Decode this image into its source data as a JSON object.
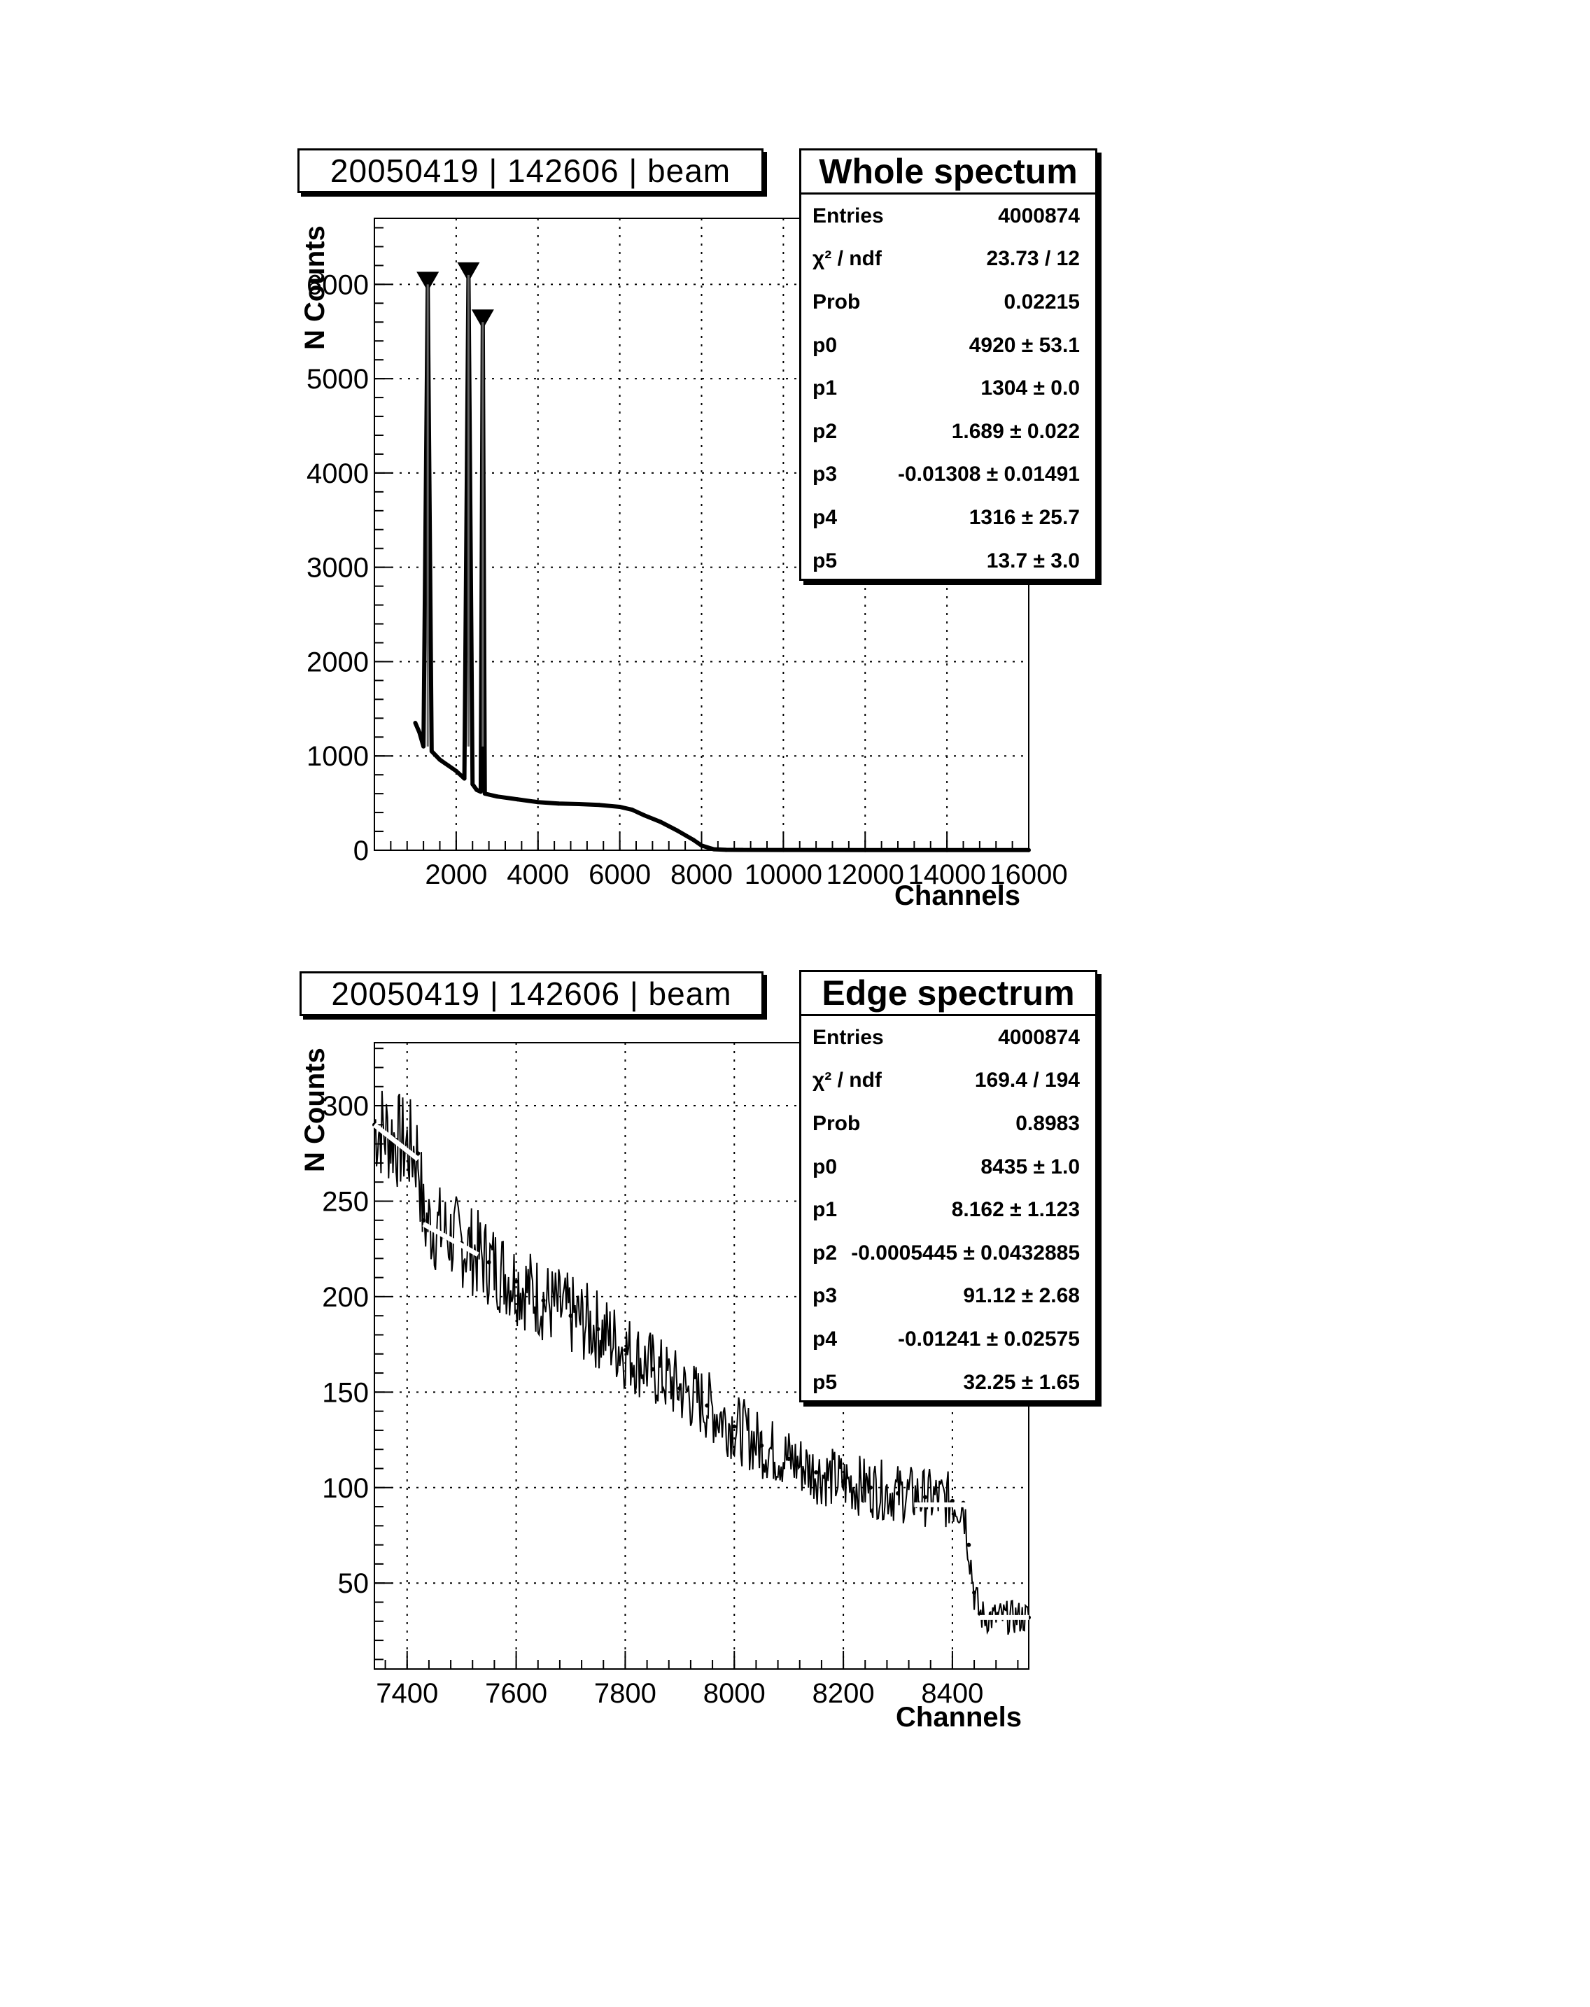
{
  "charts": [
    {
      "run_label": "20050419 | 142606 | beam",
      "stats": {
        "name": "Whole spectum",
        "rows": [
          {
            "k": "Entries",
            "v": "4000874"
          },
          {
            "k": "χ² / ndf",
            "v": "23.73 / 12"
          },
          {
            "k": "Prob",
            "v": "0.02215"
          },
          {
            "k": "p0",
            "v": "4920 ± 53.1"
          },
          {
            "k": "p1",
            "v": "1304 ± 0.0"
          },
          {
            "k": "p2",
            "v": "1.689 ± 0.022"
          },
          {
            "k": "p3",
            "v": "-0.01308 ± 0.01491"
          },
          {
            "k": "p4",
            "v": "1316 ± 25.7"
          },
          {
            "k": "p5",
            "v": "13.7 ± 3.0"
          }
        ]
      },
      "ylabel": "N Counts",
      "xlabel": "Channels"
    },
    {
      "run_label": "20050419 | 142606 | beam",
      "stats": {
        "name": "Edge spectrum",
        "rows": [
          {
            "k": "Entries",
            "v": "4000874"
          },
          {
            "k": "χ² / ndf",
            "v": "169.4 / 194"
          },
          {
            "k": "Prob",
            "v": "0.8983"
          },
          {
            "k": "p0",
            "v": "8435 ± 1.0"
          },
          {
            "k": "p1",
            "v": "8.162 ± 1.123"
          },
          {
            "k": "p2",
            "v": "-0.0005445 ± 0.0432885"
          },
          {
            "k": "p3",
            "v": "91.12 ± 2.68"
          },
          {
            "k": "p4",
            "v": "-0.01241 ± 0.02575"
          },
          {
            "k": "p5",
            "v": "32.25 ± 1.65"
          }
        ]
      },
      "ylabel": "N Counts",
      "xlabel": "Channels"
    }
  ],
  "chart_data": [
    {
      "type": "line",
      "title": "Whole spectum",
      "xlabel": "Channels",
      "ylabel": "N Counts",
      "xlim": [
        0,
        16000
      ],
      "ylim": [
        0,
        6700
      ],
      "xticks": [
        2000,
        4000,
        6000,
        8000,
        10000,
        12000,
        14000,
        16000
      ],
      "xtick_labels": [
        "2000",
        "4000",
        "6000",
        "8000",
        "10000",
        "12000",
        "14000",
        "16000"
      ],
      "yticks": [
        0,
        1000,
        2000,
        3000,
        4000,
        5000,
        6000
      ],
      "ytick_labels": [
        "0",
        "1000",
        "2000",
        "3000",
        "4000",
        "5000",
        "6000"
      ],
      "grid": true,
      "series": [
        {
          "x": [
            1000,
            1100,
            1200,
            1304,
            1400,
            1600,
            1800,
            2000,
            2200,
            2300,
            2400,
            2500,
            2600,
            2650,
            2700,
            3000,
            3500,
            4000,
            4500,
            5000,
            5500,
            6000,
            6300,
            6600,
            7000,
            7400,
            7800,
            8000,
            8300,
            8600,
            9000,
            10000,
            12000,
            14000,
            16000
          ],
          "y": [
            1350,
            1250,
            1100,
            6000,
            1050,
            960,
            900,
            840,
            760,
            6100,
            700,
            640,
            620,
            5600,
            600,
            570,
            540,
            510,
            495,
            490,
            480,
            460,
            430,
            370,
            300,
            210,
            110,
            50,
            10,
            5,
            4,
            3,
            2,
            2,
            2
          ]
        }
      ],
      "peak_markers_x": [
        1304,
        2300,
        2650
      ],
      "peak_markers_y": [
        6000,
        6100,
        5600
      ]
    },
    {
      "type": "line",
      "title": "Edge spectrum",
      "xlabel": "Channels",
      "ylabel": "N Counts",
      "xlim": [
        7340,
        8540
      ],
      "ylim": [
        5,
        333
      ],
      "xticks": [
        7400,
        7600,
        7800,
        8000,
        8200,
        8400
      ],
      "xtick_labels": [
        "7400",
        "7600",
        "7800",
        "8000",
        "8200",
        "8400"
      ],
      "yticks": [
        50,
        100,
        150,
        200,
        250,
        300
      ],
      "ytick_labels": [
        "50",
        "100",
        "150",
        "200",
        "250",
        "300"
      ],
      "grid": true,
      "series": [
        {
          "x": [
            7340,
            7380,
            7420,
            7430,
            7500,
            7550,
            7600,
            7650,
            7700,
            7750,
            7800,
            7850,
            7900,
            7950,
            8000,
            8050,
            8100,
            8150,
            8200,
            8250,
            8300,
            8350,
            8400,
            8420,
            8430,
            8440,
            8450,
            8460,
            8500,
            8540
          ],
          "y": [
            290,
            282,
            275,
            240,
            228,
            218,
            208,
            198,
            190,
            183,
            172,
            162,
            152,
            143,
            132,
            122,
            115,
            108,
            103,
            100,
            97,
            95,
            93,
            92,
            70,
            45,
            34,
            32,
            32,
            32
          ]
        }
      ],
      "fit_segments": [
        {
          "x": [
            7340,
            7420
          ],
          "y": [
            290,
            272
          ]
        },
        {
          "x": [
            7430,
            7530
          ],
          "y": [
            238,
            222
          ]
        },
        {
          "x": [
            8330,
            8430
          ],
          "y": [
            91,
            91
          ]
        },
        {
          "x": [
            8450,
            8540
          ],
          "y": [
            32,
            32
          ]
        }
      ]
    }
  ]
}
